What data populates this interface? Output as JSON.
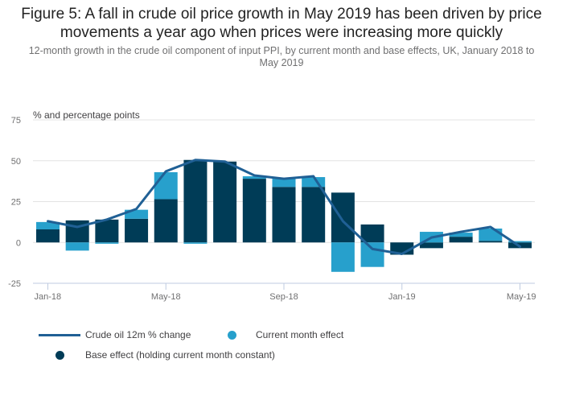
{
  "chart_data": {
    "type": "bar",
    "title": "Figure 5: A fall in crude oil price growth in May 2019 has been driven by price movements a year ago when prices were increasing more quickly",
    "subtitle": "12-month growth in the crude oil component of input PPI, by current month and base effects, UK, January 2018 to May 2019",
    "ylabel": "% and percentage points",
    "xlabel": "",
    "ylim": [
      -25,
      75
    ],
    "yticks": [
      -25,
      0,
      25,
      50,
      75
    ],
    "ytick_labels": [
      "-25",
      "0",
      "25",
      "50",
      "75"
    ],
    "grid": true,
    "stacked": true,
    "categories": [
      "Jan-18",
      "Feb-18",
      "Mar-18",
      "Apr-18",
      "May-18",
      "Jun-18",
      "Jul-18",
      "Aug-18",
      "Sep-18",
      "Oct-18",
      "Nov-18",
      "Dec-18",
      "Jan-19",
      "Feb-19",
      "Mar-19",
      "Apr-19",
      "May-19"
    ],
    "xtick_labels": [
      "Jan-18",
      "May-18",
      "Sep-18",
      "Jan-19",
      "May-19"
    ],
    "xtick_indices": [
      0,
      4,
      8,
      12,
      16
    ],
    "series": [
      {
        "name": "Base effect (holding current month constant)",
        "type": "bar",
        "color": "#003c57",
        "values": [
          8,
          13.5,
          14,
          14.5,
          26.5,
          50.5,
          49.5,
          39,
          34,
          34,
          30.5,
          11,
          -7.5,
          -3.5,
          3.5,
          1,
          -3.5
        ]
      },
      {
        "name": "Current month effect",
        "type": "bar",
        "color": "#27a0cc",
        "values": [
          4.5,
          -5,
          -0.8,
          5.5,
          16.5,
          -0.8,
          0,
          1.5,
          5,
          6,
          -18,
          -15,
          0,
          6.5,
          2.5,
          7.5,
          0.8
        ]
      },
      {
        "name": "Crude oil 12m % change",
        "type": "line",
        "color": "#206095",
        "values": [
          13,
          9.5,
          14,
          20.5,
          43.5,
          50.5,
          49.5,
          41,
          39,
          40.5,
          13,
          -4,
          -7,
          3,
          6.5,
          9.5,
          -2.5
        ]
      }
    ],
    "legend": {
      "placement": "bottom-left"
    }
  }
}
